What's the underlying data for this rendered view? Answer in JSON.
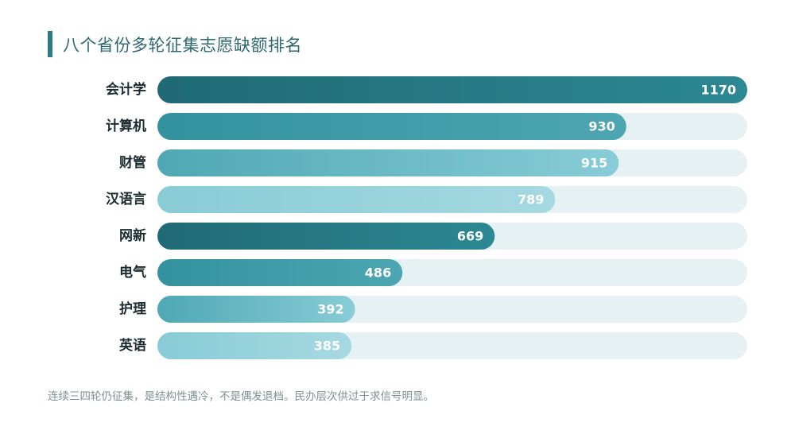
{
  "header": {
    "title": "八个省份多轮征集志愿缺额排名"
  },
  "chart_data": {
    "type": "bar",
    "orientation": "horizontal",
    "categories": [
      "会计学",
      "计算机",
      "财管",
      "汉语言",
      "网新",
      "电气",
      "护理",
      "英语"
    ],
    "values": [
      1170,
      930,
      915,
      789,
      669,
      486,
      392,
      385
    ],
    "xlim": [
      0,
      1170
    ],
    "grid": false,
    "legend": "none",
    "data_labels": true
  },
  "colors": {
    "track": "#e6f1f3",
    "dark": "#1f6a74",
    "mid": "#3b98a4",
    "light": "#88ccd6",
    "lightest": "#a6d9e1",
    "label": "#1b2b30",
    "value": "#ffffff"
  },
  "footer": {
    "note": "连续三四轮仍征集，是结构性遇冷，不是偶发退档。民办层次供过于求信号明显。"
  }
}
